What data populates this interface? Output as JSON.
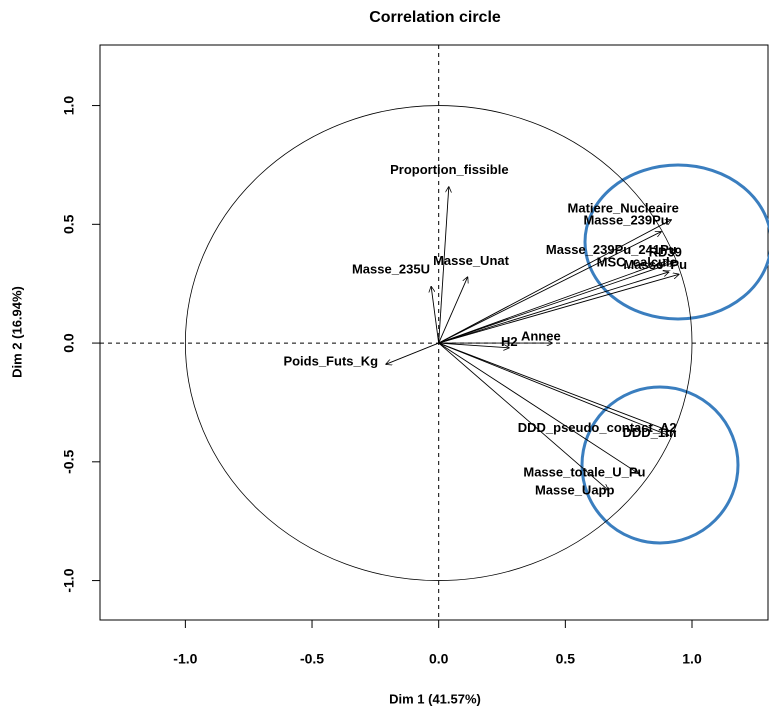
{
  "chart_data": {
    "type": "vector",
    "title": "Correlation circle",
    "xlabel": "Dim 1 (41.57%)",
    "ylabel": "Dim 2 (16.94%)",
    "xlim": [
      -1.337,
      1.3
    ],
    "ylim": [
      -1.166,
      1.255
    ],
    "xticks": [
      {
        "value": -1,
        "label": "-1.0"
      },
      {
        "value": -0.5,
        "label": "-0.5"
      },
      {
        "value": 0,
        "label": "0.0"
      },
      {
        "value": 0.5,
        "label": "0.5"
      },
      {
        "value": 1,
        "label": "1.0"
      }
    ],
    "yticks": [
      {
        "value": -1,
        "label": "-1.0"
      },
      {
        "value": -0.5,
        "label": "-0.5"
      },
      {
        "value": 0,
        "label": "0.0"
      },
      {
        "value": 0.5,
        "label": "0.5"
      },
      {
        "value": 1,
        "label": "1.0"
      }
    ],
    "color": "#000000",
    "points": [
      {
        "label": "Proportion_fissible",
        "x": 0.04,
        "y": 0.66
      },
      {
        "label": "Masse_Unat",
        "x": 0.115,
        "y": 0.28
      },
      {
        "label": "Masse_235U",
        "x": -0.03,
        "y": 0.24
      },
      {
        "label": "Poids_Futs_Kg",
        "x": -0.21,
        "y": -0.09
      },
      {
        "label": "H2",
        "x": 0.28,
        "y": -0.02
      },
      {
        "label": "Annee",
        "x": 0.45,
        "y": 0.0
      },
      {
        "label": "Matiere_Nucleaire",
        "x": 0.92,
        "y": 0.52
      },
      {
        "label": "Masse_239Pu",
        "x": 0.88,
        "y": 0.47
      },
      {
        "label": "Masse_239Pu_241Pu",
        "x": 0.91,
        "y": 0.35
      },
      {
        "label": "RD39",
        "x": 0.93,
        "y": 0.34
      },
      {
        "label": "MSC_calcule",
        "x": 0.91,
        "y": 0.3
      },
      {
        "label": "Masse_Pu",
        "x": 0.95,
        "y": 0.29
      },
      {
        "label": "DDD_pseudo_contact_A2",
        "x": 0.91,
        "y": -0.37
      },
      {
        "label": "DDD_1m",
        "x": 0.91,
        "y": -0.39
      },
      {
        "label": "Masse_totale_U_Pu",
        "x": 0.79,
        "y": -0.55
      },
      {
        "label": "Masse_Uapp",
        "x": 0.67,
        "y": -0.62
      }
    ]
  }
}
